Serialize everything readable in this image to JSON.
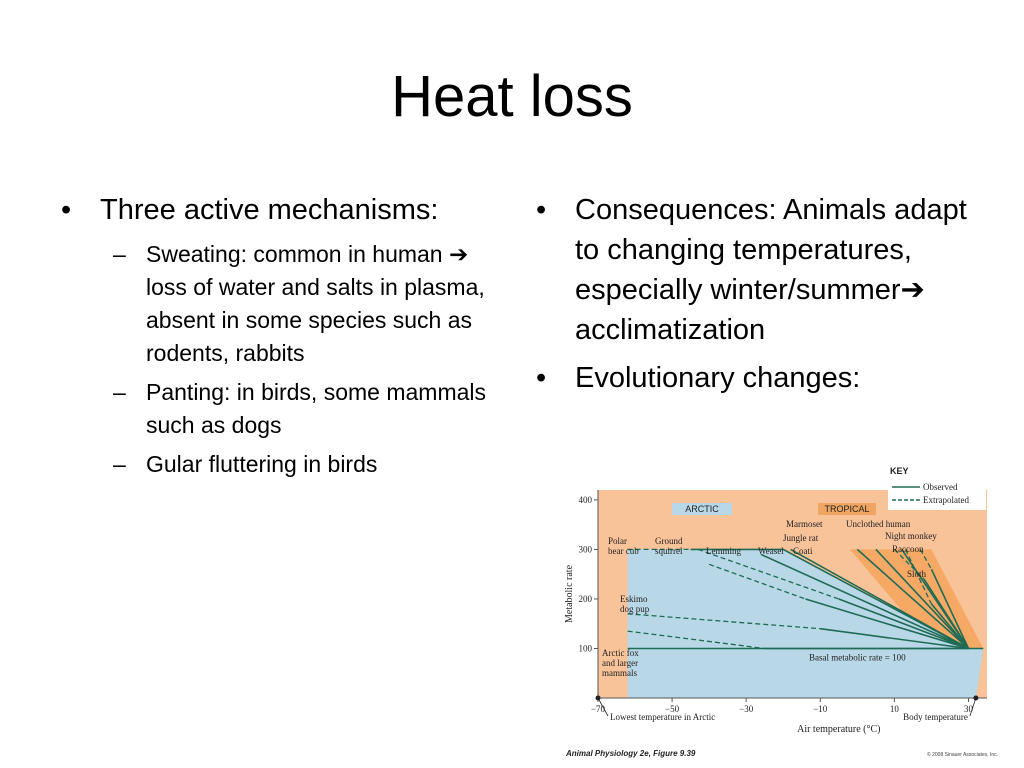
{
  "slide": {
    "title": "Heat loss",
    "left_bullets": [
      {
        "text": "Three active mechanisms:",
        "subitems": [
          "Sweating: common in human ➔ loss of water and salts in plasma, absent in some species such as rodents, rabbits",
          "Panting: in birds, some mammals such as dogs",
          "Gular fluttering in birds"
        ]
      }
    ],
    "right_bullets": [
      "Consequences: Animals adapt to changing temperatures, especially winter/summer➔ acclimatization",
      "Evolutionary changes:"
    ],
    "bullet_symbol": "•",
    "sub_symbol": "–"
  },
  "chart_data": {
    "type": "line",
    "xlabel": "Air temperature (°C)",
    "ylabel": "Metabolic rate",
    "xlim": [
      -70,
      35
    ],
    "ylim": [
      0,
      420
    ],
    "x_ticks": [
      -70,
      -50,
      -30,
      -10,
      10,
      30
    ],
    "x_tick_labels": [
      "−70",
      "−50",
      "−30",
      "−10",
      "10",
      "30"
    ],
    "y_ticks": [
      100,
      200,
      300,
      400
    ],
    "region_labels": [
      "ARCTIC",
      "TROPICAL"
    ],
    "key_title": "KEY",
    "legend": [
      "Observed",
      "Extrapolated"
    ],
    "basal_label": "Basal metabolic rate = 100",
    "x_markers": [
      {
        "x": -70,
        "label": "Lowest temperature in Arctic"
      },
      {
        "x": 32,
        "label": "Body temperature"
      }
    ],
    "series": [
      {
        "name": "Polar bear cub",
        "group": "arctic",
        "observed": [
          [
            -45,
            300
          ],
          [
            -20,
            300
          ],
          [
            30,
            100
          ]
        ],
        "extrapolated": [
          [
            -62,
            300
          ],
          [
            -45,
            300
          ]
        ]
      },
      {
        "name": "Ground squirrel",
        "group": "arctic",
        "observed": [
          [
            -5,
            200
          ],
          [
            30,
            100
          ]
        ],
        "extrapolated": [
          [
            -43,
            300
          ],
          [
            -5,
            200
          ]
        ]
      },
      {
        "name": "Lemming",
        "group": "arctic",
        "observed": [
          [
            -14,
            200
          ],
          [
            30,
            100
          ]
        ],
        "extrapolated": [
          [
            -40,
            270
          ],
          [
            -14,
            200
          ]
        ]
      },
      {
        "name": "Weasel",
        "group": "arctic",
        "observed": [
          [
            -26,
            290
          ],
          [
            30,
            100
          ]
        ],
        "extrapolated": []
      },
      {
        "name": "Coati",
        "group": "arctic",
        "observed": [
          [
            -18,
            300
          ],
          [
            30,
            100
          ]
        ],
        "extrapolated": []
      },
      {
        "name": "Eskimo dog pup",
        "group": "arctic",
        "observed": [
          [
            -10,
            140
          ],
          [
            30,
            100
          ]
        ],
        "extrapolated": [
          [
            -62,
            170
          ],
          [
            -10,
            140
          ]
        ]
      },
      {
        "name": "Arctic fox and larger mammals",
        "group": "arctic",
        "observed": [
          [
            -25,
            100
          ],
          [
            30,
            100
          ]
        ],
        "extrapolated": [
          [
            -62,
            135
          ],
          [
            -25,
            100
          ]
        ]
      },
      {
        "name": "Marmoset",
        "group": "tropical",
        "observed": [
          [
            0,
            300
          ],
          [
            30,
            100
          ]
        ],
        "extrapolated": []
      },
      {
        "name": "Jungle rat",
        "group": "tropical",
        "observed": [
          [
            5,
            300
          ],
          [
            30,
            100
          ]
        ],
        "extrapolated": []
      },
      {
        "name": "Unclothed human",
        "group": "tropical",
        "observed": [
          [
            20,
            190
          ],
          [
            30,
            100
          ]
        ],
        "extrapolated": [
          [
            13,
            300
          ],
          [
            20,
            190
          ]
        ]
      },
      {
        "name": "Night monkey",
        "group": "tropical",
        "observed": [
          [
            18,
            240
          ],
          [
            30,
            100
          ]
        ],
        "extrapolated": [
          [
            10,
            300
          ],
          [
            18,
            240
          ]
        ]
      },
      {
        "name": "Raccoon",
        "group": "tropical",
        "observed": [
          [
            12,
            300
          ],
          [
            30,
            100
          ]
        ],
        "extrapolated": []
      },
      {
        "name": "Sloth",
        "group": "tropical",
        "observed": [
          [
            20,
            260
          ],
          [
            30,
            100
          ]
        ],
        "extrapolated": [
          [
            17,
            300
          ],
          [
            20,
            260
          ]
        ]
      }
    ],
    "credit": "Animal Physiology 2e, Figure 9.39",
    "copyright": "© 2008 Sinauer Associates, Inc.",
    "colors": {
      "background": "#f9c39a",
      "arctic_region": "#b8d8e8",
      "tropical_region": "#f5a55c",
      "line": "#1f6b55",
      "tropical_label": "#f1a563"
    }
  }
}
